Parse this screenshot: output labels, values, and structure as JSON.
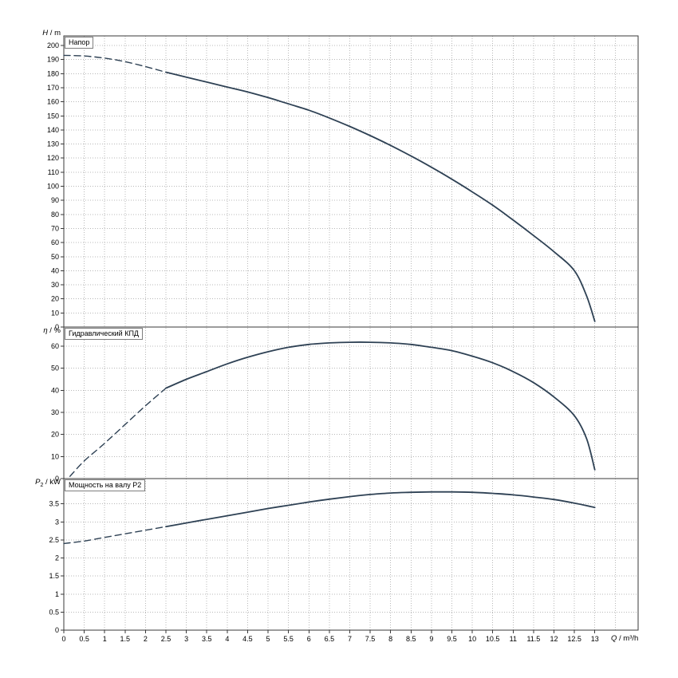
{
  "colors": {
    "curve": "#2e4154",
    "grid": "#b8b8b8",
    "axis": "#3a3a3a",
    "text": "#000000",
    "background": "#ffffff"
  },
  "xaxis": {
    "label": {
      "var": "Q",
      "rest": " / m³/h"
    },
    "xlim": [
      0,
      14.06
    ],
    "ticks": [
      0,
      0.5,
      1,
      1.5,
      2,
      2.5,
      3,
      3.5,
      4,
      4.5,
      5,
      5.5,
      6,
      6.5,
      7,
      7.5,
      8,
      8.5,
      9,
      9.5,
      10,
      10.5,
      11,
      11.5,
      12,
      12.5,
      13
    ],
    "grid_extra_x": [
      13.5
    ]
  },
  "chart_data": [
    {
      "type": "line",
      "title": "Напор",
      "ylabel": {
        "var": "H",
        "sub": "",
        "rest": " / m"
      },
      "ylim": [
        0,
        206.8
      ],
      "yticks": [
        0,
        10,
        20,
        30,
        40,
        50,
        60,
        70,
        80,
        90,
        100,
        110,
        120,
        130,
        140,
        150,
        160,
        170,
        180,
        190,
        200
      ],
      "series": [
        {
          "name": "head-dashed",
          "style": "dashed",
          "points": [
            [
              0,
              193
            ],
            [
              0.5,
              192.5
            ],
            [
              1,
              191
            ],
            [
              1.5,
              188.5
            ],
            [
              2,
              185
            ],
            [
              2.5,
              181
            ]
          ]
        },
        {
          "name": "head-solid",
          "style": "solid",
          "points": [
            [
              2.5,
              181
            ],
            [
              3,
              177.5
            ],
            [
              3.5,
              174
            ],
            [
              4,
              170.5
            ],
            [
              4.5,
              167
            ],
            [
              5,
              163
            ],
            [
              5.5,
              158.5
            ],
            [
              6,
              154
            ],
            [
              6.5,
              148.5
            ],
            [
              7,
              142.5
            ],
            [
              7.5,
              136
            ],
            [
              8,
              129
            ],
            [
              8.5,
              121.5
            ],
            [
              9,
              113.5
            ],
            [
              9.5,
              105
            ],
            [
              10,
              96
            ],
            [
              10.5,
              86.5
            ],
            [
              11,
              76
            ],
            [
              11.5,
              65
            ],
            [
              12,
              53.5
            ],
            [
              12.5,
              40
            ],
            [
              12.8,
              22
            ],
            [
              13,
              4
            ]
          ]
        }
      ]
    },
    {
      "type": "line",
      "title": "Гидравлический КПД",
      "ylabel": {
        "var": "η",
        "sub": "",
        "rest": " / %"
      },
      "ylim": [
        0,
        68.7
      ],
      "yticks": [
        0,
        10,
        20,
        30,
        40,
        50,
        60
      ],
      "series": [
        {
          "name": "efficiency-dashed",
          "style": "dashed",
          "points": [
            [
              0.15,
              1
            ],
            [
              0.5,
              8
            ],
            [
              1,
              16
            ],
            [
              1.5,
              24.5
            ],
            [
              2,
              33
            ],
            [
              2.5,
              41
            ]
          ]
        },
        {
          "name": "efficiency-solid",
          "style": "solid",
          "points": [
            [
              2.5,
              41
            ],
            [
              3,
              45
            ],
            [
              3.5,
              48.5
            ],
            [
              4,
              52
            ],
            [
              4.5,
              55
            ],
            [
              5,
              57.5
            ],
            [
              5.5,
              59.5
            ],
            [
              6,
              60.8
            ],
            [
              6.5,
              61.5
            ],
            [
              7,
              61.8
            ],
            [
              7.5,
              61.8
            ],
            [
              8,
              61.5
            ],
            [
              8.5,
              60.8
            ],
            [
              9,
              59.5
            ],
            [
              9.5,
              58
            ],
            [
              10,
              55.5
            ],
            [
              10.5,
              52.5
            ],
            [
              11,
              48.5
            ],
            [
              11.5,
              43.5
            ],
            [
              12,
              37
            ],
            [
              12.5,
              28.5
            ],
            [
              12.8,
              18
            ],
            [
              13,
              4
            ]
          ]
        }
      ]
    },
    {
      "type": "line",
      "title": "Мощность на валу P2",
      "ylabel": {
        "var": "P",
        "sub": "2",
        "rest": " / kW"
      },
      "ylim": [
        0,
        4.2
      ],
      "yticks": [
        0,
        0.5,
        1,
        1.5,
        2,
        2.5,
        3,
        3.5
      ],
      "series": [
        {
          "name": "power-dashed",
          "style": "dashed",
          "points": [
            [
              0,
              2.4
            ],
            [
              0.5,
              2.47
            ],
            [
              1,
              2.57
            ],
            [
              1.5,
              2.67
            ],
            [
              2,
              2.77
            ],
            [
              2.5,
              2.87
            ]
          ]
        },
        {
          "name": "power-solid",
          "style": "solid",
          "points": [
            [
              2.5,
              2.87
            ],
            [
              3,
              2.97
            ],
            [
              3.5,
              3.07
            ],
            [
              4,
              3.17
            ],
            [
              4.5,
              3.27
            ],
            [
              5,
              3.37
            ],
            [
              5.5,
              3.46
            ],
            [
              6,
              3.55
            ],
            [
              6.5,
              3.63
            ],
            [
              7,
              3.7
            ],
            [
              7.5,
              3.76
            ],
            [
              8,
              3.8
            ],
            [
              8.5,
              3.82
            ],
            [
              9,
              3.83
            ],
            [
              9.5,
              3.83
            ],
            [
              10,
              3.82
            ],
            [
              10.5,
              3.79
            ],
            [
              11,
              3.75
            ],
            [
              11.5,
              3.69
            ],
            [
              12,
              3.62
            ],
            [
              12.5,
              3.52
            ],
            [
              13,
              3.4
            ]
          ]
        }
      ]
    }
  ]
}
